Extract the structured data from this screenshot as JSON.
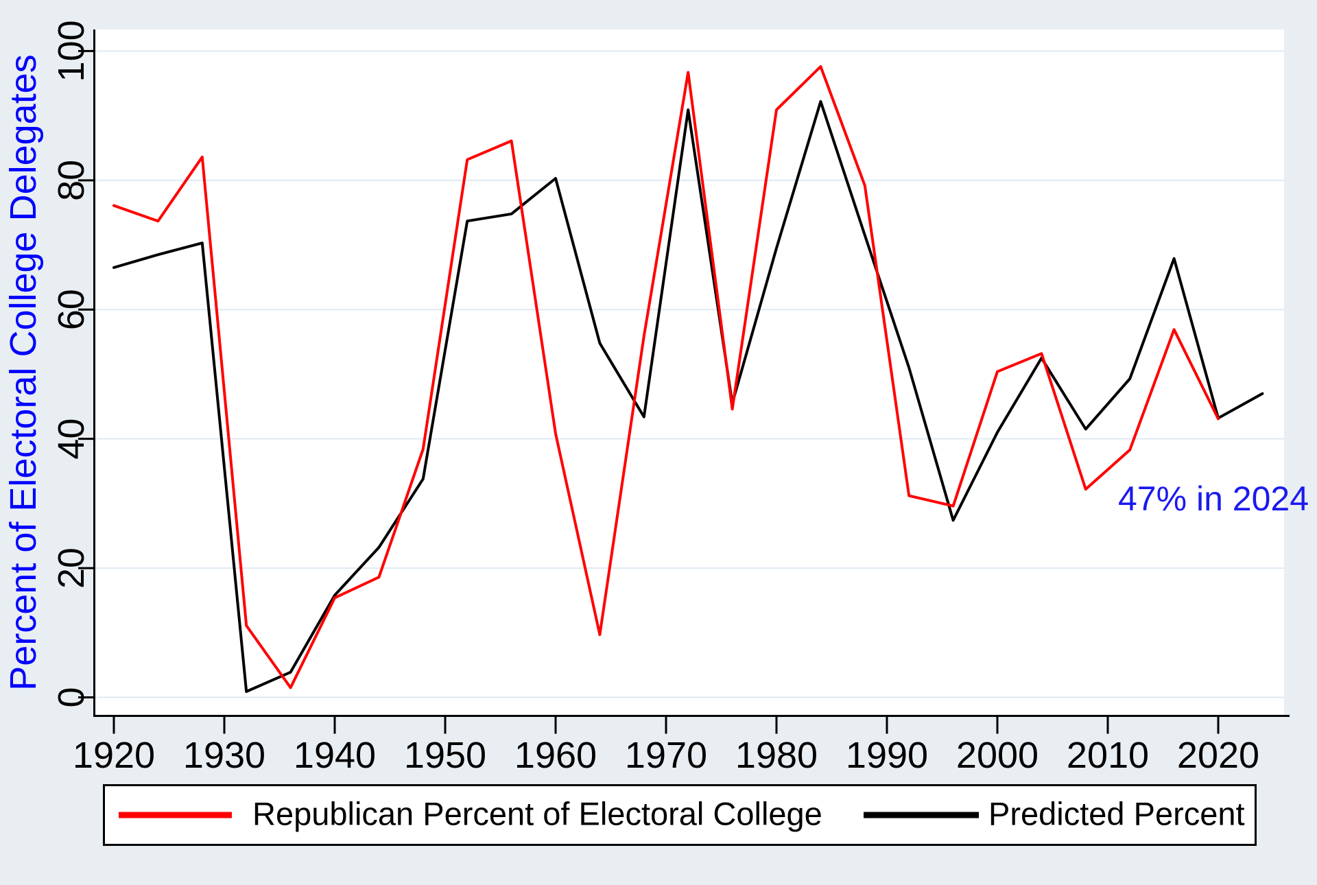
{
  "figure": {
    "background_color": "#e8eef2",
    "plot_background": "#ffffff",
    "gridline_color": "#dfeaf2",
    "axis_color": "#000000",
    "tick_label_color": "#000000",
    "y_axis_title": "Percent of Electoral College Delegates",
    "y_axis_title_color": "#0000ff"
  },
  "chart_data": {
    "type": "line",
    "title": "",
    "xlabel": "",
    "ylabel": "Percent of Electoral College Delegates",
    "ylim": [
      0,
      100
    ],
    "xlim": [
      1917,
      2026
    ],
    "grid": "horizontal",
    "legend_position": "bottom",
    "x_ticks": [
      1920,
      1930,
      1940,
      1950,
      1960,
      1970,
      1980,
      1990,
      2000,
      2010,
      2020
    ],
    "y_ticks": [
      0,
      20,
      40,
      60,
      80,
      100
    ],
    "x": [
      1920,
      1924,
      1928,
      1932,
      1936,
      1940,
      1944,
      1948,
      1952,
      1956,
      1960,
      1964,
      1968,
      1972,
      1976,
      1980,
      1984,
      1988,
      1992,
      1996,
      2000,
      2004,
      2008,
      2012,
      2016,
      2020,
      2024
    ],
    "series": [
      {
        "name": "Republican Percent of Electoral College",
        "color": "#ff0000",
        "values": [
          76.1,
          73.7,
          83.6,
          11.1,
          1.5,
          15.4,
          18.6,
          38.4,
          83.2,
          86.1,
          40.8,
          9.7,
          55.9,
          96.7,
          44.6,
          90.9,
          97.6,
          79.2,
          31.2,
          29.6,
          50.4,
          53.2,
          32.2,
          38.3,
          56.9,
          43.1,
          null
        ]
      },
      {
        "name": "Predicted Percent",
        "color": "#000000",
        "values": [
          66.5,
          68.5,
          70.3,
          0.9,
          3.9,
          15.8,
          23.2,
          33.8,
          73.7,
          74.8,
          80.3,
          54.8,
          43.4,
          90.9,
          45.5,
          69.5,
          92.2,
          71.5,
          51.0,
          27.4,
          41.0,
          52.5,
          41.5,
          49.3,
          67.9,
          43.2,
          47.0
        ]
      }
    ],
    "annotation": {
      "text": "47% in 2024",
      "color": "#1a1aee",
      "year": 2019,
      "value": 30
    }
  }
}
